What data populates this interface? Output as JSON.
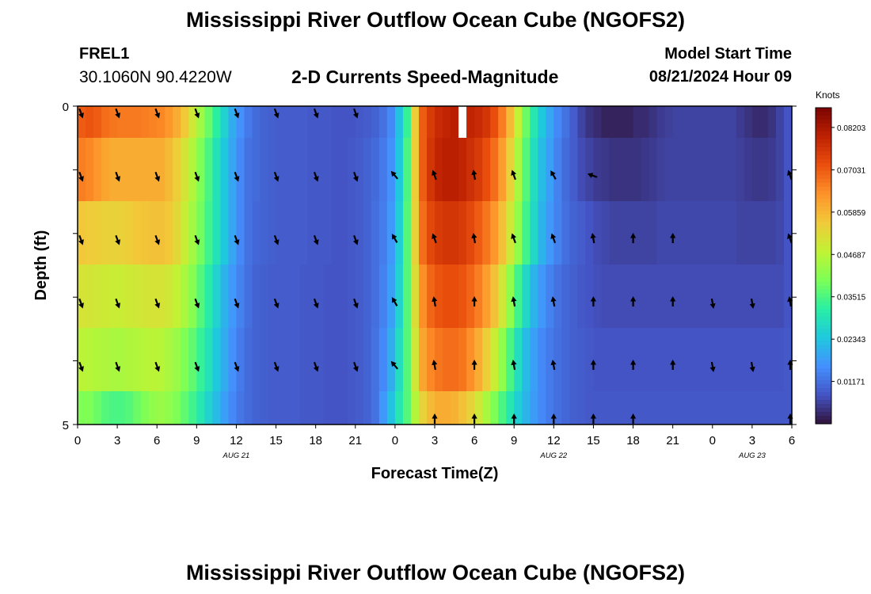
{
  "header": {
    "title": "Mississippi River Outflow Ocean Cube (NGOFS2)",
    "station_name": "FREL1",
    "station_coords": "30.1060N  90.4220W",
    "subtitle": "2-D Currents Speed-Magnitude",
    "start_label": "Model Start Time",
    "start_value": "08/21/2024 Hour 09"
  },
  "footer": {
    "title": "Mississippi River Outflow Ocean Cube (NGOFS2)"
  },
  "chart_data": {
    "type": "heatmap",
    "title": "2-D Currents Speed-Magnitude",
    "xlabel": "Forecast Time(Z)",
    "ylabel": "Depth (ft)",
    "x_tick_labels": [
      "0",
      "3",
      "6",
      "9",
      "12",
      "15",
      "18",
      "21",
      "0",
      "3",
      "6",
      "9",
      "12",
      "15",
      "18",
      "21",
      "0",
      "3",
      "6"
    ],
    "date_labels": [
      {
        "label": "AUG 21",
        "tick_index": 4
      },
      {
        "label": "AUG 22",
        "tick_index": 12
      },
      {
        "label": "AUG 23",
        "tick_index": 17
      }
    ],
    "x_range_hours": [
      0,
      54
    ],
    "y_tick_labels": [
      "0",
      "5"
    ],
    "y_range_ft": [
      0,
      5
    ],
    "depth_layers": 5,
    "colorbar": {
      "unit": "Knots",
      "ticks": [
        "0.08203",
        "0.07031",
        "0.05859",
        "0.04687",
        "0.03515",
        "0.02343",
        "0.01171"
      ],
      "min": 0.0,
      "max": 0.0875,
      "colors": [
        "#30123b",
        "#4454c4",
        "#4490fe",
        "#1fc8de",
        "#29efa2",
        "#7dff56",
        "#c1f334",
        "#f1ca3a",
        "#fe922a",
        "#ea4f0d",
        "#be2102",
        "#7a0403"
      ]
    },
    "speed_knots": {
      "rows": [
        [
          0.07,
          0.071,
          0.07,
          0.068,
          0.067,
          0.0665,
          0.0665,
          0.0665,
          0.066,
          0.0655,
          0.065,
          0.063,
          0.06,
          0.056,
          0.05,
          0.044,
          0.038,
          0.032,
          0.026,
          0.02,
          0.016,
          0.013,
          0.011,
          0.01,
          0.0095,
          0.009,
          0.009,
          0.009,
          0.009,
          0.0085,
          0.0085,
          0.0085,
          0.008,
          0.008,
          0.008,
          0.0085,
          0.009,
          0.01,
          0.012,
          0.015,
          0.023,
          0.033,
          0.055,
          0.07,
          0.075,
          0.078,
          0.079,
          0.08,
          0.08,
          0.079,
          0.078,
          0.076,
          0.072,
          0.066,
          0.058,
          0.048,
          0.038,
          0.03,
          0.024,
          0.019,
          0.015,
          0.012,
          0.009,
          0.006,
          0.004,
          0.003,
          0.002,
          0.002,
          0.002,
          0.002,
          0.003,
          0.003,
          0.004,
          0.005,
          0.0055,
          0.006,
          0.006,
          0.006,
          0.006,
          0.006,
          0.006,
          0.006,
          0.006,
          0.005,
          0.004,
          0.003,
          0.003,
          0.004,
          0.006,
          0.008
        ],
        [
          0.066,
          0.065,
          0.063,
          0.061,
          0.06,
          0.06,
          0.06,
          0.06,
          0.06,
          0.06,
          0.06,
          0.058,
          0.055,
          0.051,
          0.046,
          0.04,
          0.035,
          0.029,
          0.024,
          0.019,
          0.015,
          0.012,
          0.011,
          0.01,
          0.0095,
          0.009,
          0.009,
          0.009,
          0.009,
          0.0085,
          0.0085,
          0.0085,
          0.008,
          0.008,
          0.0085,
          0.009,
          0.01,
          0.011,
          0.013,
          0.016,
          0.024,
          0.035,
          0.055,
          0.07,
          0.076,
          0.079,
          0.08,
          0.08,
          0.079,
          0.077,
          0.075,
          0.072,
          0.068,
          0.062,
          0.054,
          0.045,
          0.036,
          0.028,
          0.022,
          0.018,
          0.014,
          0.011,
          0.009,
          0.007,
          0.006,
          0.005,
          0.0045,
          0.004,
          0.004,
          0.004,
          0.004,
          0.0045,
          0.005,
          0.0055,
          0.006,
          0.006,
          0.006,
          0.006,
          0.006,
          0.006,
          0.006,
          0.006,
          0.006,
          0.0055,
          0.005,
          0.0045,
          0.0045,
          0.005,
          0.006,
          0.008
        ],
        [
          0.056,
          0.0555,
          0.055,
          0.0545,
          0.054,
          0.0545,
          0.055,
          0.056,
          0.0565,
          0.057,
          0.057,
          0.056,
          0.053,
          0.049,
          0.044,
          0.039,
          0.034,
          0.029,
          0.024,
          0.019,
          0.015,
          0.012,
          0.0105,
          0.01,
          0.0095,
          0.009,
          0.009,
          0.009,
          0.009,
          0.0085,
          0.0085,
          0.0085,
          0.008,
          0.008,
          0.0085,
          0.009,
          0.01,
          0.0115,
          0.0135,
          0.017,
          0.025,
          0.036,
          0.054,
          0.068,
          0.073,
          0.075,
          0.076,
          0.076,
          0.075,
          0.073,
          0.07,
          0.067,
          0.063,
          0.057,
          0.05,
          0.042,
          0.034,
          0.027,
          0.021,
          0.017,
          0.014,
          0.0115,
          0.01,
          0.009,
          0.008,
          0.007,
          0.0065,
          0.006,
          0.006,
          0.006,
          0.006,
          0.006,
          0.006,
          0.0065,
          0.0065,
          0.0065,
          0.0065,
          0.0065,
          0.0065,
          0.0065,
          0.0065,
          0.0065,
          0.0065,
          0.006,
          0.006,
          0.006,
          0.006,
          0.006,
          0.0065,
          0.008
        ],
        [
          0.051,
          0.0505,
          0.05,
          0.0495,
          0.049,
          0.049,
          0.0495,
          0.05,
          0.0505,
          0.051,
          0.051,
          0.05,
          0.048,
          0.045,
          0.041,
          0.036,
          0.031,
          0.026,
          0.021,
          0.017,
          0.014,
          0.0115,
          0.01,
          0.0095,
          0.009,
          0.009,
          0.009,
          0.009,
          0.0085,
          0.0085,
          0.0085,
          0.008,
          0.008,
          0.008,
          0.0085,
          0.009,
          0.01,
          0.0115,
          0.014,
          0.018,
          0.026,
          0.036,
          0.052,
          0.064,
          0.069,
          0.071,
          0.072,
          0.072,
          0.071,
          0.069,
          0.066,
          0.062,
          0.057,
          0.05,
          0.042,
          0.034,
          0.027,
          0.021,
          0.017,
          0.014,
          0.012,
          0.0105,
          0.0095,
          0.0085,
          0.008,
          0.0075,
          0.007,
          0.007,
          0.007,
          0.007,
          0.007,
          0.007,
          0.007,
          0.007,
          0.007,
          0.007,
          0.007,
          0.007,
          0.007,
          0.007,
          0.007,
          0.007,
          0.007,
          0.007,
          0.007,
          0.007,
          0.007,
          0.007,
          0.007,
          0.008
        ],
        [
          0.047,
          0.0465,
          0.046,
          0.0455,
          0.045,
          0.045,
          0.0455,
          0.046,
          0.0465,
          0.047,
          0.0465,
          0.045,
          0.043,
          0.04,
          0.037,
          0.033,
          0.029,
          0.024,
          0.02,
          0.016,
          0.013,
          0.011,
          0.01,
          0.0095,
          0.009,
          0.009,
          0.009,
          0.009,
          0.0085,
          0.0085,
          0.0085,
          0.008,
          0.008,
          0.008,
          0.0085,
          0.009,
          0.01,
          0.012,
          0.015,
          0.02,
          0.028,
          0.036,
          0.05,
          0.061,
          0.065,
          0.067,
          0.068,
          0.068,
          0.067,
          0.064,
          0.06,
          0.055,
          0.049,
          0.042,
          0.035,
          0.028,
          0.022,
          0.018,
          0.015,
          0.013,
          0.0115,
          0.0105,
          0.0095,
          0.009,
          0.0085,
          0.008,
          0.008,
          0.008,
          0.008,
          0.008,
          0.008,
          0.008,
          0.008,
          0.008,
          0.008,
          0.008,
          0.008,
          0.008,
          0.008,
          0.008,
          0.008,
          0.008,
          0.008,
          0.008,
          0.008,
          0.008,
          0.008,
          0.008,
          0.008,
          0.0085
        ],
        [
          0.04,
          0.04,
          0.038,
          0.036,
          0.035,
          0.035,
          0.036,
          0.038,
          0.04,
          0.042,
          0.043,
          0.042,
          0.04,
          0.037,
          0.034,
          0.03,
          0.026,
          0.022,
          0.018,
          0.015,
          0.0125,
          0.011,
          0.01,
          0.0095,
          0.009,
          0.009,
          0.009,
          0.009,
          0.0085,
          0.0085,
          0.0085,
          0.008,
          0.008,
          0.008,
          0.0085,
          0.009,
          0.01,
          0.012,
          0.017,
          0.023,
          0.03,
          0.036,
          0.046,
          0.054,
          0.058,
          0.06,
          0.06,
          0.059,
          0.057,
          0.054,
          0.05,
          0.045,
          0.04,
          0.035,
          0.03,
          0.025,
          0.021,
          0.0175,
          0.015,
          0.013,
          0.0115,
          0.0105,
          0.0095,
          0.009,
          0.0085,
          0.0085,
          0.0085,
          0.0085,
          0.0085,
          0.0085,
          0.0085,
          0.0085,
          0.0085,
          0.0085,
          0.0085,
          0.0085,
          0.0085,
          0.0085,
          0.0085,
          0.0085,
          0.0085,
          0.0085,
          0.0085,
          0.0085,
          0.0085,
          0.0085,
          0.0085,
          0.0085,
          0.0085,
          0.0085
        ]
      ],
      "missing_columns": [
        48
      ]
    },
    "vectors": {
      "hours": [
        0,
        3,
        6,
        9,
        12,
        15,
        18,
        21,
        24,
        27,
        30,
        33,
        36,
        39,
        42,
        45,
        48,
        51,
        54
      ],
      "direction_deg": [
        [
          160,
          160,
          160,
          160,
          160,
          160,
          160,
          160,
          null,
          null,
          null,
          null,
          null,
          null,
          null,
          null,
          null,
          null,
          null
        ],
        [
          160,
          160,
          160,
          160,
          160,
          160,
          160,
          160,
          320,
          340,
          350,
          340,
          330,
          290,
          null,
          null,
          null,
          null,
          340
        ],
        [
          160,
          160,
          160,
          160,
          160,
          160,
          160,
          160,
          330,
          340,
          350,
          340,
          340,
          350,
          0,
          0,
          null,
          null,
          340
        ],
        [
          160,
          160,
          160,
          160,
          160,
          160,
          160,
          160,
          330,
          350,
          0,
          350,
          350,
          0,
          0,
          0,
          170,
          170,
          350
        ],
        [
          160,
          160,
          160,
          160,
          160,
          160,
          160,
          160,
          320,
          350,
          0,
          350,
          350,
          0,
          0,
          0,
          170,
          170,
          0
        ],
        [
          null,
          null,
          null,
          null,
          null,
          null,
          null,
          null,
          null,
          0,
          0,
          0,
          0,
          0,
          0,
          null,
          null,
          null,
          0
        ]
      ]
    }
  }
}
